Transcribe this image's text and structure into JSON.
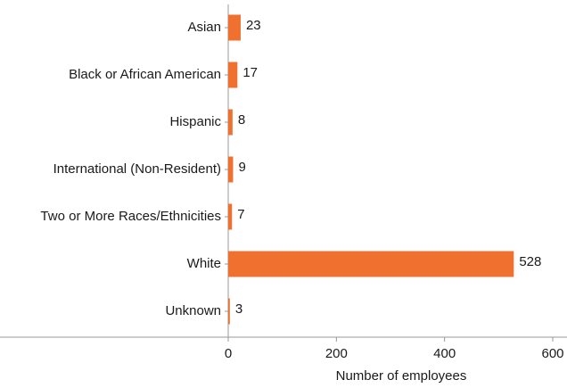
{
  "chart_data": {
    "type": "bar",
    "orientation": "horizontal",
    "categories": [
      "Asian",
      "Black or African American",
      "Hispanic",
      "International (Non-Resident)",
      "Two or More Races/Ethnicities",
      "White",
      "Unknown"
    ],
    "values": [
      23,
      17,
      8,
      9,
      7,
      528,
      3
    ],
    "value_labels": [
      "23",
      "17",
      "8",
      "9",
      "7",
      "528",
      "3"
    ],
    "xlabel": "Number of employees",
    "ylabel": "",
    "xlim": [
      0,
      600
    ],
    "xticks": [
      0,
      200,
      400,
      600
    ],
    "xtick_labels": [
      "0",
      "200",
      "400",
      "600"
    ],
    "bar_color": "#f07030",
    "axis_color": "#999999",
    "grid": false,
    "legend": "none"
  }
}
